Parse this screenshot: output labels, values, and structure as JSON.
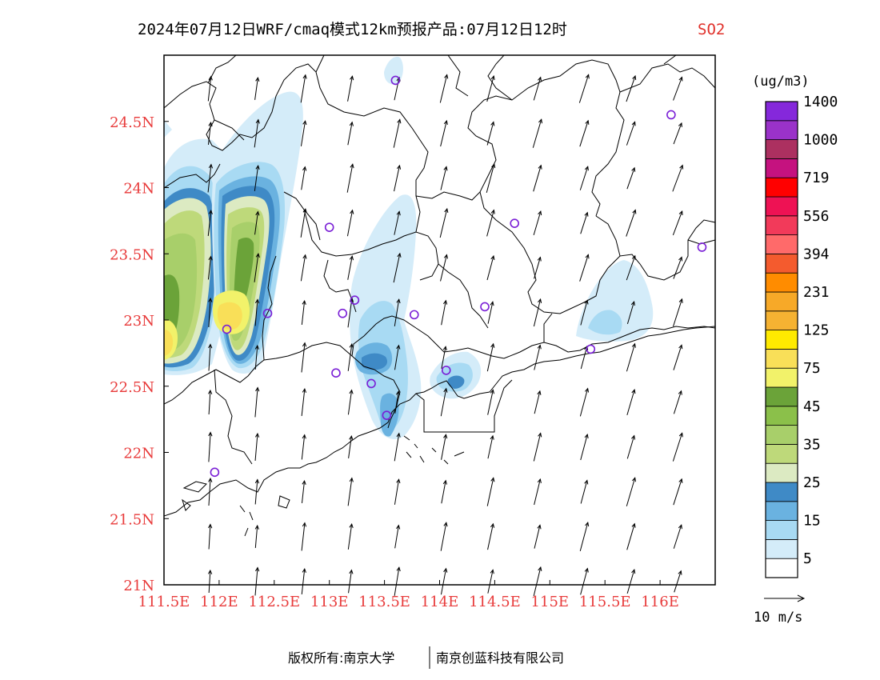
{
  "title": {
    "main": "2024年07月12日WRF/cmaq模式12km预报产品:07月12日12时",
    "variable": "SO2"
  },
  "map": {
    "lon_range": [
      111.5,
      116.5
    ],
    "lat_range": [
      21.0,
      25.0
    ],
    "x_ticks": [
      {
        "value": 111.5,
        "label": "111.5E"
      },
      {
        "value": 112.0,
        "label": "112E"
      },
      {
        "value": 112.5,
        "label": "112.5E"
      },
      {
        "value": 113.0,
        "label": "113E"
      },
      {
        "value": 113.5,
        "label": "113.5E"
      },
      {
        "value": 114.0,
        "label": "114E"
      },
      {
        "value": 114.5,
        "label": "114.5E"
      },
      {
        "value": 115.0,
        "label": "115E"
      },
      {
        "value": 115.5,
        "label": "115.5E"
      },
      {
        "value": 116.0,
        "label": "116E"
      }
    ],
    "y_ticks": [
      {
        "value": 21.0,
        "label": "21N"
      },
      {
        "value": 21.5,
        "label": "21.5N"
      },
      {
        "value": 22.0,
        "label": "22N"
      },
      {
        "value": 22.5,
        "label": "22.5N"
      },
      {
        "value": 23.0,
        "label": "23N"
      },
      {
        "value": 23.5,
        "label": "23.5N"
      },
      {
        "value": 24.0,
        "label": "24N"
      },
      {
        "value": 24.5,
        "label": "24.5N"
      }
    ],
    "stations": [
      {
        "lon": 113.6,
        "lat": 24.81
      },
      {
        "lon": 116.1,
        "lat": 24.55
      },
      {
        "lon": 113.0,
        "lat": 23.7
      },
      {
        "lon": 114.68,
        "lat": 23.73
      },
      {
        "lon": 116.38,
        "lat": 23.55
      },
      {
        "lon": 113.23,
        "lat": 23.15
      },
      {
        "lon": 112.44,
        "lat": 23.05
      },
      {
        "lon": 113.12,
        "lat": 23.05
      },
      {
        "lon": 113.77,
        "lat": 23.04
      },
      {
        "lon": 114.41,
        "lat": 23.1
      },
      {
        "lon": 112.07,
        "lat": 22.93
      },
      {
        "lon": 113.06,
        "lat": 22.6
      },
      {
        "lon": 113.38,
        "lat": 22.52
      },
      {
        "lon": 114.06,
        "lat": 22.62
      },
      {
        "lon": 115.37,
        "lat": 22.78
      },
      {
        "lon": 113.52,
        "lat": 22.28
      },
      {
        "lon": 111.96,
        "lat": 21.85
      }
    ]
  },
  "colorbar": {
    "unit": "(ug/m3)",
    "colors": [
      "#ffffff",
      "#d4ecf9",
      "#a8daf3",
      "#6ab2e0",
      "#3f8ac6",
      "#dceac2",
      "#bed97a",
      "#a8cf6a",
      "#8bc04a",
      "#6ba339",
      "#f2f26a",
      "#f9df58",
      "#ffea00",
      "#f5b232",
      "#f7a928",
      "#ff8c00",
      "#f45b2e",
      "#ff6a6a",
      "#f23a5a",
      "#ee1254",
      "#ff0000",
      "#c5127f",
      "#ac3060",
      "#9a32c9",
      "#8528db"
    ],
    "labels": [
      "5",
      "15",
      "25",
      "35",
      "45",
      "75",
      "125",
      "231",
      "394",
      "556",
      "719",
      "1000",
      "1400"
    ]
  },
  "wind_legend": {
    "label": "10 m/s"
  },
  "footer": {
    "left": "版权所有:南京大学",
    "right": "南京创蓝科技有限公司"
  }
}
